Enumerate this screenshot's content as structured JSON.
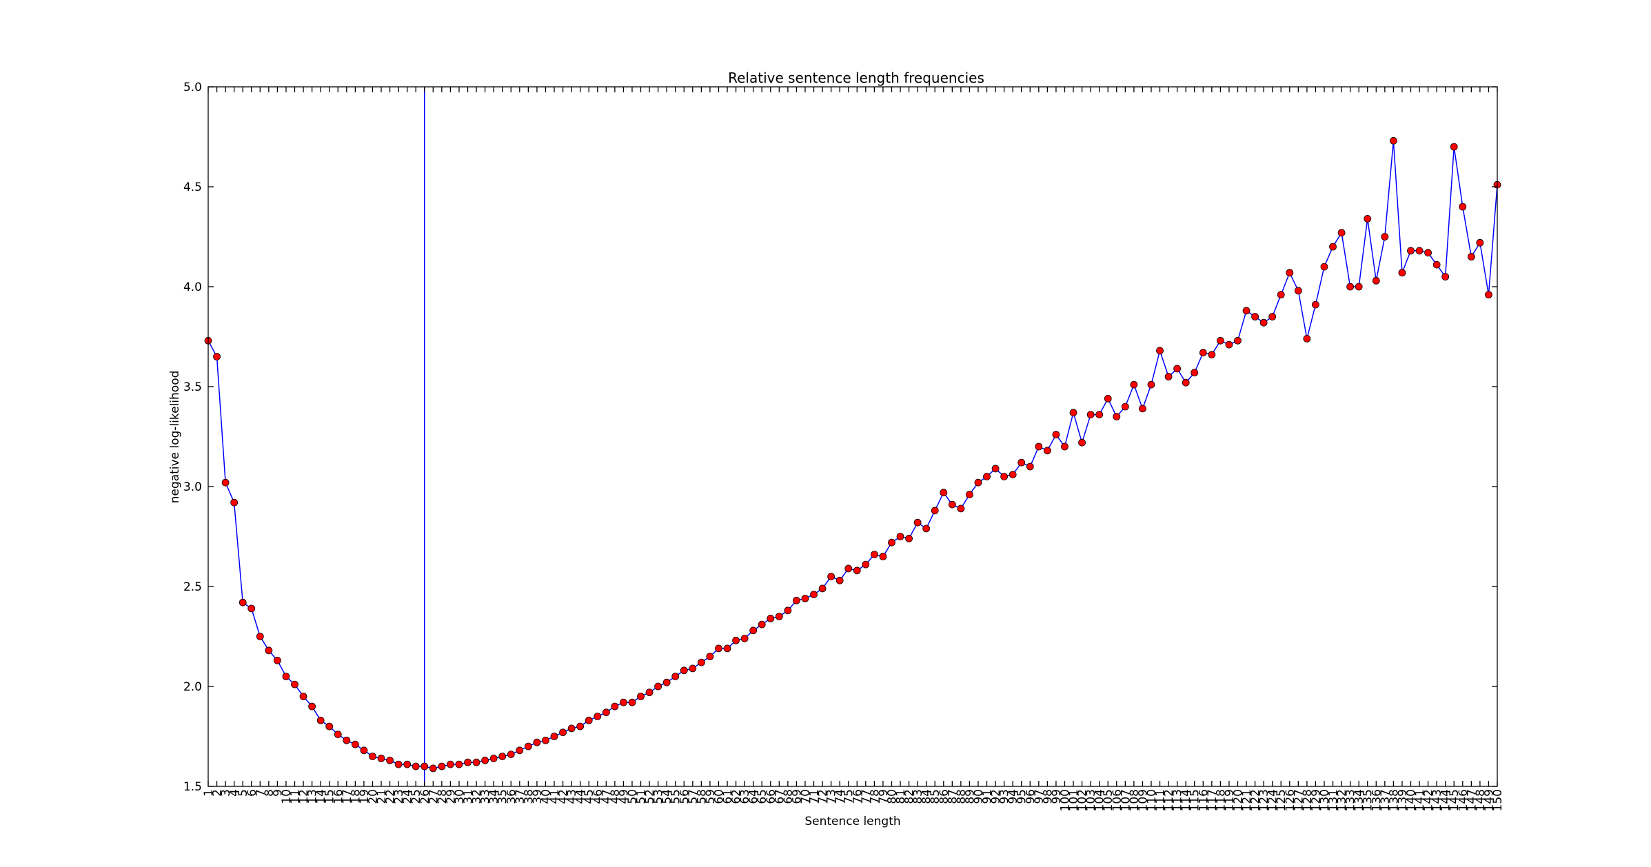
{
  "chart_data": {
    "type": "line",
    "title": "Relative sentence length frequencies",
    "xlabel": "Sentence length",
    "ylabel": "negative log-likelihood",
    "xlim": [
      1,
      150
    ],
    "ylim": [
      1.5,
      5.0
    ],
    "yticks": [
      1.5,
      2.0,
      2.5,
      3.0,
      3.5,
      4.0,
      4.5,
      5.0
    ],
    "ytick_labels": [
      "1.5",
      "2.0",
      "2.5",
      "3.0",
      "3.5",
      "4.0",
      "4.5",
      "5.0"
    ],
    "xticks": "every integer from 1 to 150",
    "vline_x": 26,
    "grid": false,
    "line_color": "#0000ff",
    "marker_color": "#ff0000",
    "series": [
      {
        "x": [
          1,
          2,
          3,
          4,
          5,
          6,
          7,
          8,
          9,
          10,
          11,
          12,
          13,
          14,
          15,
          16,
          17,
          18,
          19,
          20,
          21,
          22,
          23,
          24,
          25,
          26,
          27,
          28,
          29,
          30,
          31,
          32,
          33,
          34,
          35,
          36,
          37,
          38,
          39,
          40,
          41,
          42,
          43,
          44,
          45,
          46,
          47,
          48,
          49,
          50,
          51,
          52,
          53,
          54,
          55,
          56,
          57,
          58,
          59,
          60,
          61,
          62,
          63,
          64,
          65,
          66,
          67,
          68,
          69,
          70,
          71,
          72,
          73,
          74,
          75,
          76,
          77,
          78,
          79,
          80,
          81,
          82,
          83,
          84,
          85,
          86,
          87,
          88,
          89,
          90,
          91,
          92,
          93,
          94,
          95,
          96,
          97,
          98,
          99,
          100,
          101,
          102,
          103,
          104,
          105,
          106,
          107,
          108,
          109,
          110,
          111,
          112,
          113,
          114,
          115,
          116,
          117,
          118,
          119,
          120,
          121,
          122,
          123,
          124,
          125,
          126,
          127,
          128,
          129,
          130,
          131,
          132,
          133,
          134,
          135,
          136,
          137,
          138,
          139,
          140,
          141,
          142,
          143,
          144,
          145,
          146,
          147,
          148,
          149,
          150
        ],
        "values": [
          3.73,
          3.65,
          3.02,
          2.92,
          2.42,
          2.39,
          2.25,
          2.18,
          2.13,
          2.05,
          2.01,
          1.95,
          1.9,
          1.83,
          1.8,
          1.76,
          1.73,
          1.71,
          1.68,
          1.65,
          1.64,
          1.63,
          1.61,
          1.61,
          1.6,
          1.6,
          1.59,
          1.6,
          1.61,
          1.61,
          1.62,
          1.62,
          1.63,
          1.64,
          1.65,
          1.66,
          1.68,
          1.7,
          1.72,
          1.73,
          1.75,
          1.77,
          1.79,
          1.8,
          1.83,
          1.85,
          1.87,
          1.9,
          1.92,
          1.92,
          1.95,
          1.97,
          2.0,
          2.02,
          2.05,
          2.08,
          2.09,
          2.12,
          2.15,
          2.19,
          2.19,
          2.23,
          2.24,
          2.28,
          2.31,
          2.34,
          2.35,
          2.38,
          2.43,
          2.44,
          2.46,
          2.49,
          2.55,
          2.53,
          2.59,
          2.58,
          2.61,
          2.66,
          2.65,
          2.72,
          2.75,
          2.74,
          2.82,
          2.79,
          2.88,
          2.97,
          2.91,
          2.89,
          2.96,
          3.02,
          3.05,
          3.09,
          3.05,
          3.06,
          3.12,
          3.1,
          3.2,
          3.18,
          3.26,
          3.2,
          3.37,
          3.22,
          3.36,
          3.36,
          3.44,
          3.35,
          3.4,
          3.51,
          3.39,
          3.51,
          3.68,
          3.55,
          3.59,
          3.52,
          3.57,
          3.67,
          3.66,
          3.73,
          3.71,
          3.73,
          3.88,
          3.85,
          3.82,
          3.85,
          3.96,
          4.07,
          3.98,
          3.74,
          3.91,
          4.1,
          4.2,
          4.27,
          4.0,
          4.0,
          4.34,
          4.03,
          4.25,
          4.73,
          4.07,
          4.18,
          4.18,
          4.17,
          4.11,
          4.05,
          4.7,
          4.4,
          4.15,
          4.22,
          3.96,
          4.51
        ]
      }
    ]
  }
}
